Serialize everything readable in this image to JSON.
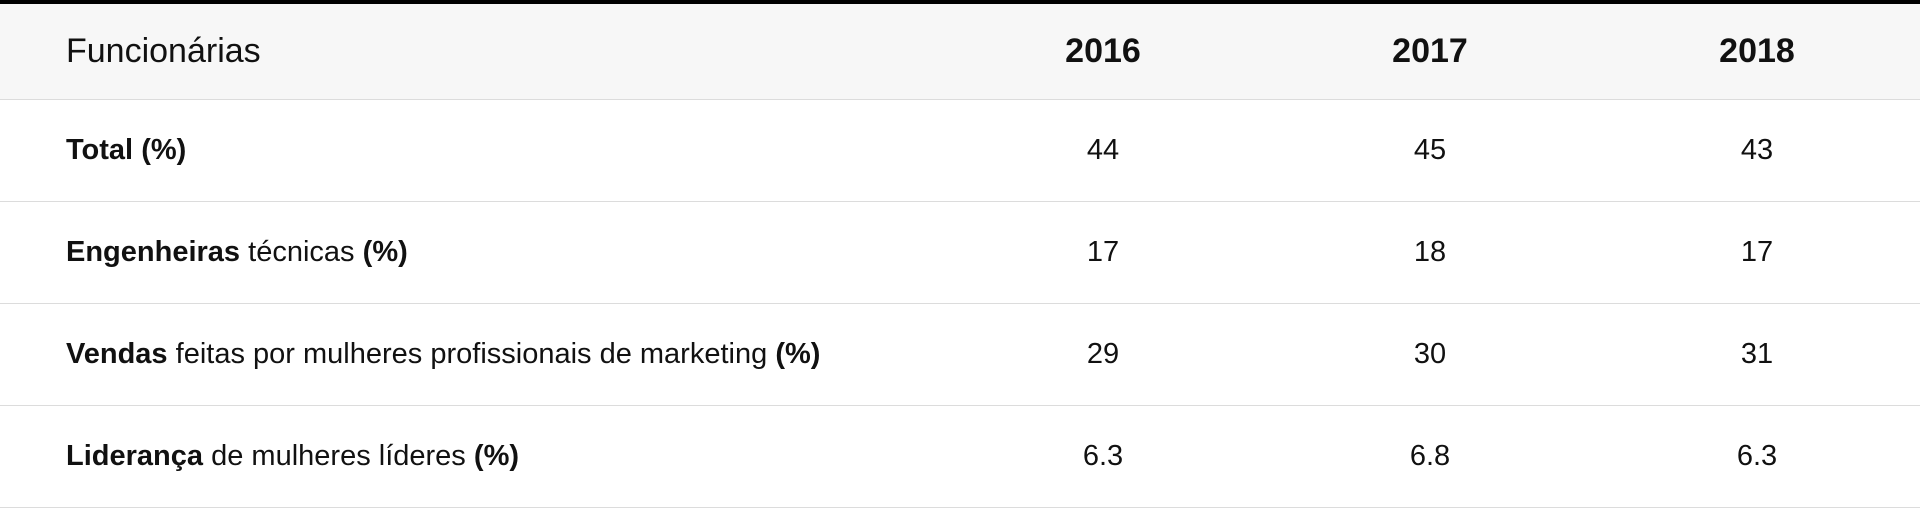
{
  "table": {
    "header": [
      "Funcionárias",
      "2016",
      "2017",
      "2018"
    ],
    "rows": [
      {
        "label": [
          {
            "text": "Total",
            "bold": true
          },
          {
            "text": "(%)",
            "bold": true
          }
        ],
        "values": [
          44,
          45,
          43
        ]
      },
      {
        "label": [
          {
            "text": "Engenheiras",
            "bold": true
          },
          {
            "text": "técnicas",
            "bold": false
          },
          {
            "text": "(%)",
            "bold": true
          }
        ],
        "values": [
          17,
          18,
          17
        ]
      },
      {
        "label": [
          {
            "text": "Vendas",
            "bold": true
          },
          {
            "text": "feitas por mulheres profissionais de marketing",
            "bold": false
          },
          {
            "text": "(%)",
            "bold": true
          }
        ],
        "values": [
          29,
          30,
          31
        ]
      },
      {
        "label": [
          {
            "text": "Liderança",
            "bold": true
          },
          {
            "text": "de mulheres líderes",
            "bold": false
          },
          {
            "text": "(%)",
            "bold": true
          }
        ],
        "values": [
          6.3,
          6.8,
          6.3
        ]
      }
    ]
  }
}
